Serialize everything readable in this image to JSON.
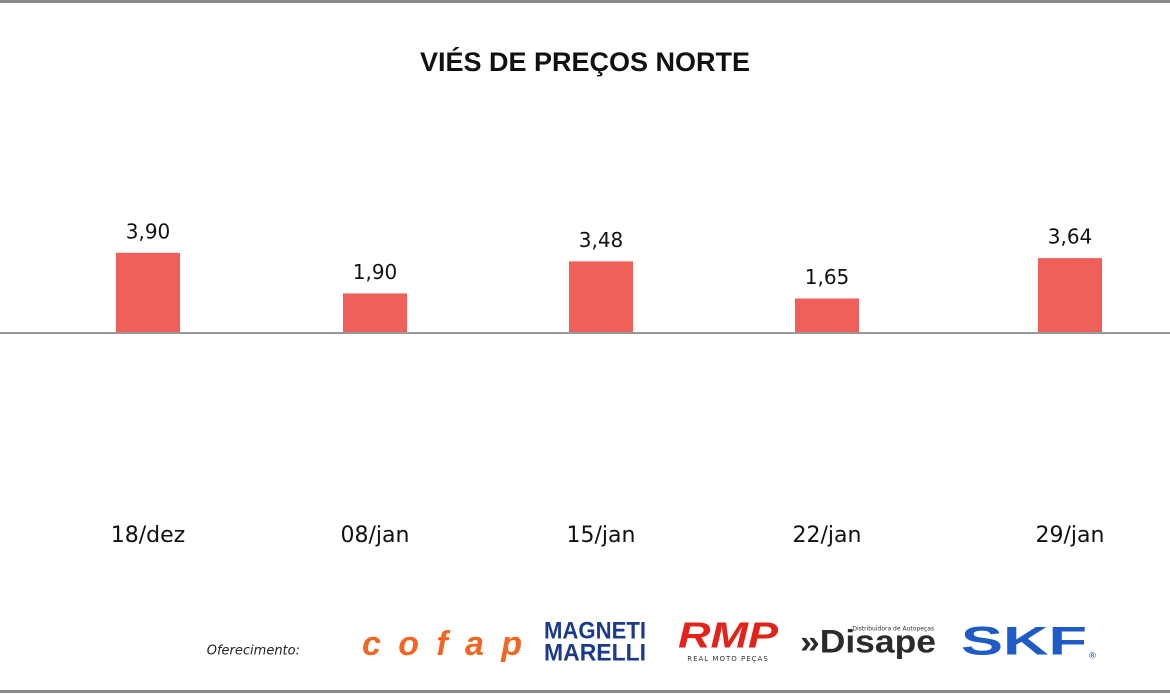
{
  "chart_data": {
    "type": "bar",
    "title": "VIÉS DE PREÇOS NORTE",
    "categories": [
      "18/dez",
      "08/jan",
      "15/jan",
      "22/jan",
      "29/jan"
    ],
    "values": [
      3.9,
      1.9,
      3.48,
      1.65,
      3.64
    ],
    "value_labels": [
      "3,90",
      "1,90",
      "3,48",
      "1,65",
      "3,64"
    ],
    "color": "#f0605a"
  },
  "sponsors": {
    "caption": "Oferecimento:",
    "logos": [
      {
        "name": "cofap",
        "color": "#f26522"
      },
      {
        "name": "MAGNETI",
        "subname": "MARELLI",
        "color": "#1b3a8c"
      },
      {
        "name": "RMP",
        "subname": "REAL MOTO PEÇAS",
        "color": "#e2231a"
      },
      {
        "name": "»Disape",
        "subname": "Distribuidora de Autopeças",
        "color": "#2b2b2b"
      },
      {
        "name": "SKF",
        "subname": "®",
        "color": "#1e5bc6"
      }
    ]
  }
}
